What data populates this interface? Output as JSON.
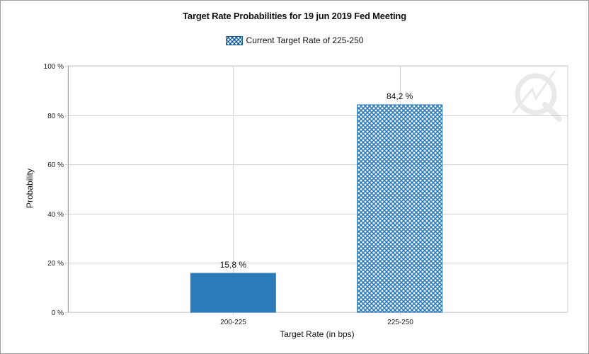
{
  "chart_data": {
    "type": "bar",
    "title": "Target Rate Probabilities for 19 jun 2019 Fed Meeting",
    "xlabel": "Target Rate (in bps)",
    "ylabel": "Probability",
    "categories": [
      "200-225",
      "225-250"
    ],
    "values": [
      15.8,
      84.2
    ],
    "data_labels": [
      "15,8 %",
      "84,2 %"
    ],
    "ylim": [
      0,
      100
    ],
    "yticks": [
      0,
      20,
      40,
      60,
      80,
      100
    ],
    "ytick_labels": [
      "0 %",
      "20 %",
      "40 %",
      "60 %",
      "80 %",
      "100 %"
    ],
    "grid": true,
    "legend": {
      "position": "top-center",
      "label": "Current Target Rate of 225-250"
    },
    "highlight_category": "225-250",
    "colors": {
      "bar": "#2b7bba",
      "highlight_fill": "#ffffff",
      "highlight_hatch": "#2b7bba",
      "grid": "#d4d4d4",
      "axis": "#9e9e9e"
    }
  }
}
